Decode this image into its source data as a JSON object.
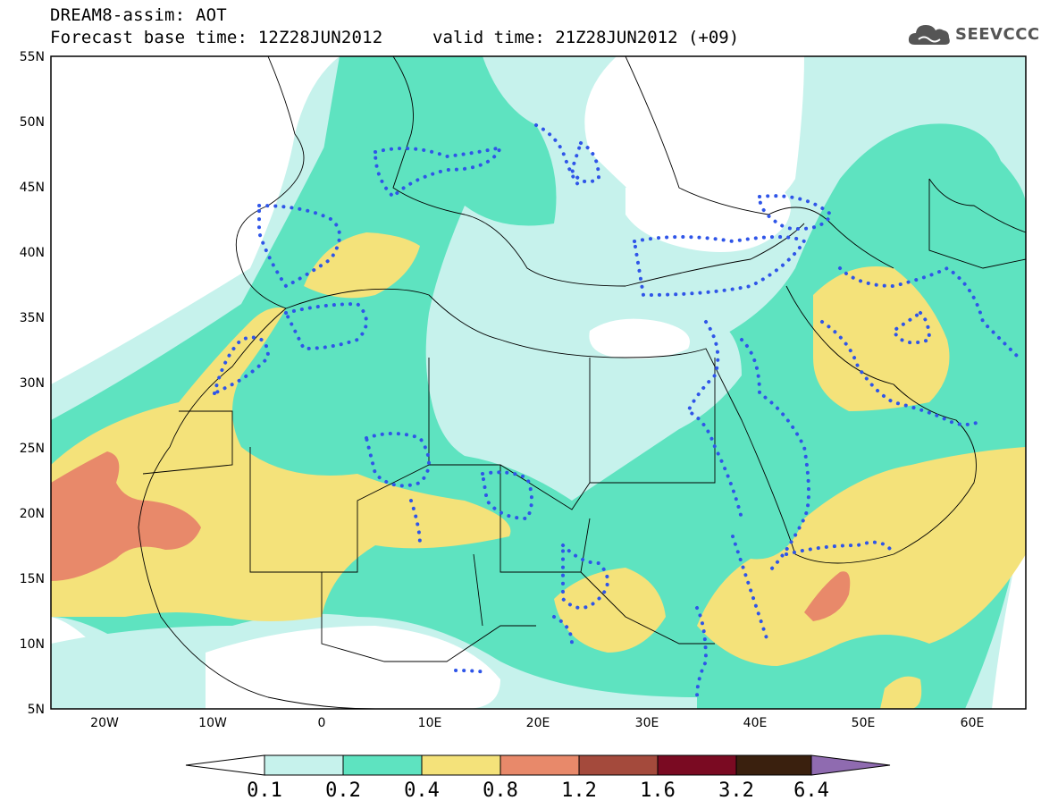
{
  "header": {
    "line1": "DREAM8-assim: AOT",
    "line2": "Forecast base time: 12Z28JUN2012",
    "valid": "valid time: 21Z28JUN2012 (+09)",
    "logo_text": "SEEVCCC",
    "logo_icon": "cloud-icon"
  },
  "map": {
    "lat_labels": [
      "55N",
      "50N",
      "45N",
      "40N",
      "35N",
      "30N",
      "25N",
      "20N",
      "15N",
      "10N",
      "5N"
    ],
    "lon_labels": [
      "20W",
      "10W",
      "0",
      "10E",
      "20E",
      "30E",
      "40E",
      "50E",
      "60E"
    ],
    "lon_range": [
      -25,
      65
    ],
    "lat_range": [
      5,
      55
    ]
  },
  "colorbar": {
    "labels": [
      "0.1",
      "0.2",
      "0.4",
      "0.8",
      "1.2",
      "1.6",
      "3.2",
      "6.4"
    ],
    "colors": [
      "#c6f2ec",
      "#5ee3c0",
      "#f4e27a",
      "#e8896a",
      "#a44a3c",
      "#7a0a22",
      "#3a200e",
      "#8f6bb0"
    ]
  }
}
